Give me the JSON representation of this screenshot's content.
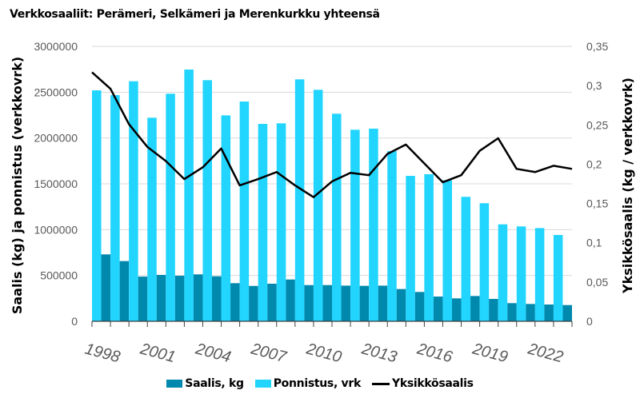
{
  "chart_data": {
    "type": "bar+line",
    "title": "Verkkosaaliit: Perämeri, Selkämeri ja Merenkurkku yhteensä",
    "ylabel": "Saalis (kg) ja ponnistus (verkkovrk)",
    "y2label": "Yksikkösaalis (kg / verkkovrk)",
    "ylim": [
      0,
      3000000
    ],
    "y2lim": [
      0,
      0.35
    ],
    "yticks": [
      "0",
      "500000",
      "1000000",
      "1500000",
      "2000000",
      "2500000",
      "3000000"
    ],
    "y2ticks": [
      "0",
      "0,05",
      "0,1",
      "0,15",
      "0,2",
      "0,25",
      "0,3",
      "0,35"
    ],
    "grid": true,
    "legend_position": "bottom",
    "x": [
      1997,
      1998,
      1999,
      2000,
      2001,
      2002,
      2003,
      2004,
      2005,
      2006,
      2007,
      2008,
      2009,
      2010,
      2011,
      2012,
      2013,
      2014,
      2015,
      2016,
      2017,
      2018,
      2019,
      2020,
      2021,
      2022,
      2023
    ],
    "xtick_labels": [
      "1998",
      "2001",
      "2004",
      "2007",
      "2010",
      "2013",
      "2016",
      "2019",
      "2022"
    ],
    "series": [
      {
        "name": "Saalis, kg",
        "type": "bar",
        "axis": "left",
        "color": "#0089AD",
        "values": [
          null,
          730000,
          657000,
          488000,
          506000,
          497000,
          512000,
          491000,
          416000,
          386000,
          410000,
          456000,
          395000,
          395000,
          389000,
          387000,
          389000,
          352000,
          320000,
          270000,
          250000,
          276000,
          244000,
          198000,
          189000,
          183000,
          177000
        ]
      },
      {
        "name": "Ponnistus, vrk",
        "type": "bar",
        "axis": "left",
        "color": "#22D5FF",
        "values": [
          2520000,
          2468000,
          2619000,
          2221000,
          2483000,
          2747000,
          2631000,
          2247000,
          2398000,
          2154000,
          2160000,
          2640000,
          2526000,
          2265000,
          2090000,
          2102000,
          1857000,
          1587000,
          1605000,
          1538000,
          1358000,
          1288000,
          1058000,
          1035000,
          1017000,
          942000,
          924000
        ]
      },
      {
        "name": "Yksikkösaalis",
        "type": "line",
        "axis": "right",
        "color": "#000000",
        "values": [
          0.317,
          0.296,
          0.251,
          0.222,
          0.204,
          0.181,
          0.196,
          0.22,
          0.173,
          0.181,
          0.19,
          0.173,
          0.158,
          0.178,
          0.189,
          0.186,
          0.213,
          0.225,
          0.201,
          0.177,
          0.186,
          0.217,
          0.233,
          0.194,
          0.19,
          0.198,
          0.194
        ]
      }
    ]
  }
}
